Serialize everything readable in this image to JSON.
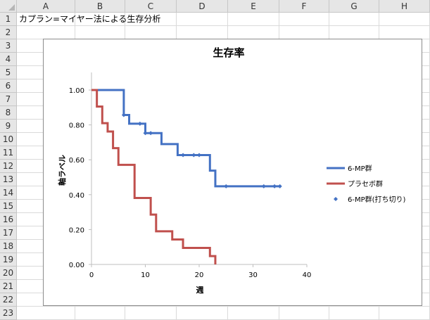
{
  "sheet": {
    "columns": [
      "A",
      "B",
      "C",
      "D",
      "E",
      "F",
      "G",
      "H"
    ],
    "rows": [
      "1",
      "2",
      "3",
      "4",
      "5",
      "6",
      "7",
      "8",
      "9",
      "10",
      "11",
      "12",
      "13",
      "14",
      "15",
      "16",
      "17",
      "18",
      "19",
      "20",
      "21",
      "22",
      "23"
    ],
    "cell_a1": "カプラン=マイヤー法による生存分析"
  },
  "chart_data": {
    "type": "line",
    "title": "生存率",
    "xlabel": "週",
    "ylabel": "軸ラベル",
    "xlim": [
      0,
      40
    ],
    "ylim": [
      0,
      1
    ],
    "x_ticks": [
      "0",
      "10",
      "20",
      "30",
      "40"
    ],
    "y_ticks": [
      "0.00",
      "0.20",
      "0.40",
      "0.60",
      "0.80",
      "1.00"
    ],
    "grid": false,
    "legend_position": "right",
    "series": [
      {
        "name": "6-MP群",
        "color": "#4472c4",
        "style": "step",
        "x": [
          0,
          6,
          7,
          10,
          13,
          16,
          22,
          23,
          35
        ],
        "y": [
          1.0,
          0.857,
          0.807,
          0.753,
          0.69,
          0.627,
          0.538,
          0.448,
          0.448
        ]
      },
      {
        "name": "プラセボ群",
        "color": "#c0504d",
        "style": "step",
        "x": [
          0,
          1,
          2,
          3,
          4,
          5,
          8,
          11,
          12,
          15,
          17,
          22,
          23
        ],
        "y": [
          1.0,
          0.905,
          0.81,
          0.762,
          0.667,
          0.571,
          0.381,
          0.286,
          0.19,
          0.143,
          0.095,
          0.048,
          0.0
        ]
      },
      {
        "name": "6-MP群(打ち切り)",
        "color": "#4472c4",
        "style": "markers",
        "x": [
          6,
          9,
          10,
          11,
          17,
          19,
          20,
          25,
          32,
          34,
          35
        ],
        "y": [
          0.857,
          0.807,
          0.753,
          0.753,
          0.627,
          0.627,
          0.627,
          0.448,
          0.448,
          0.448,
          0.448
        ]
      }
    ]
  }
}
